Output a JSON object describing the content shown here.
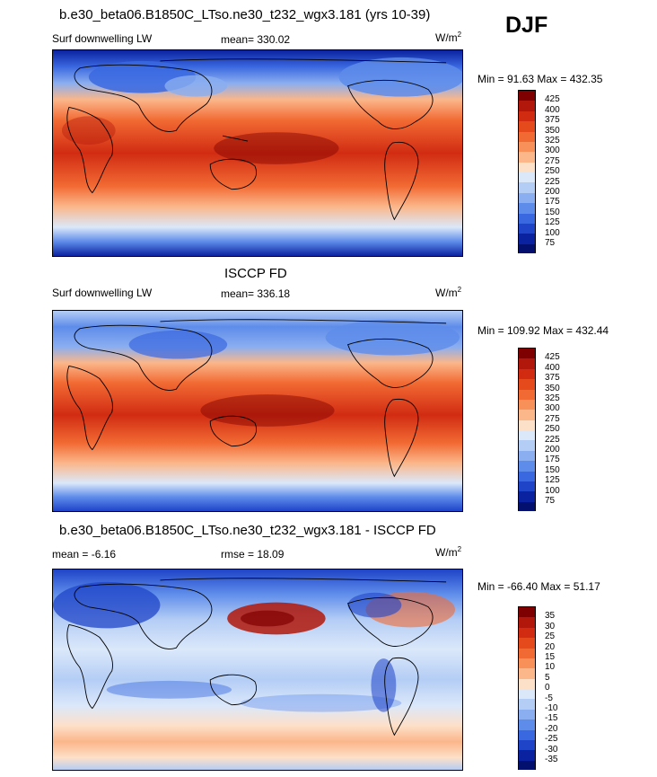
{
  "season": "DJF",
  "panels": [
    {
      "title": "b.e30_beta06.B1850C_LTso.ne30_t232_wgx3.181 (yrs 10-39)",
      "left_label": "Surf downwelling LW",
      "center_label": "mean= 330.02",
      "units": "W/m",
      "units_sup": "2",
      "minmax": "Min =  91.63 Max = 432.35",
      "ticks": [
        "425",
        "400",
        "375",
        "350",
        "325",
        "300",
        "275",
        "250",
        "225",
        "200",
        "175",
        "150",
        "125",
        "100",
        "75"
      ]
    },
    {
      "title": "ISCCP FD",
      "left_label": "Surf downwelling LW",
      "center_label": "mean= 336.18",
      "units": "W/m",
      "units_sup": "2",
      "minmax": "Min = 109.92 Max = 432.44",
      "ticks": [
        "425",
        "400",
        "375",
        "350",
        "325",
        "300",
        "275",
        "250",
        "225",
        "200",
        "175",
        "150",
        "125",
        "100",
        "75"
      ]
    },
    {
      "title": "b.e30_beta06.B1850C_LTso.ne30_t232_wgx3.181 - ISCCP FD",
      "left_label": "mean =  -6.16",
      "center_label": "rmse =  18.09",
      "units": "W/m",
      "units_sup": "2",
      "minmax": "Min = -66.40 Max =  51.17",
      "ticks": [
        "35",
        "30",
        "25",
        "20",
        "15",
        "10",
        "5",
        "0",
        "-5",
        "-10",
        "-15",
        "-20",
        "-25",
        "-30",
        "-35"
      ]
    }
  ],
  "colors": {
    "scale": [
      "#7f0000",
      "#b2170b",
      "#d12c12",
      "#e54a1d",
      "#f26a33",
      "#f8905a",
      "#fbb68a",
      "#fde0c8",
      "#dbe8fa",
      "#b4cdf5",
      "#8aaef0",
      "#5e8cea",
      "#3a68e0",
      "#1f44c8",
      "#0b22a0",
      "#03106e"
    ],
    "land_line": "#000000"
  }
}
